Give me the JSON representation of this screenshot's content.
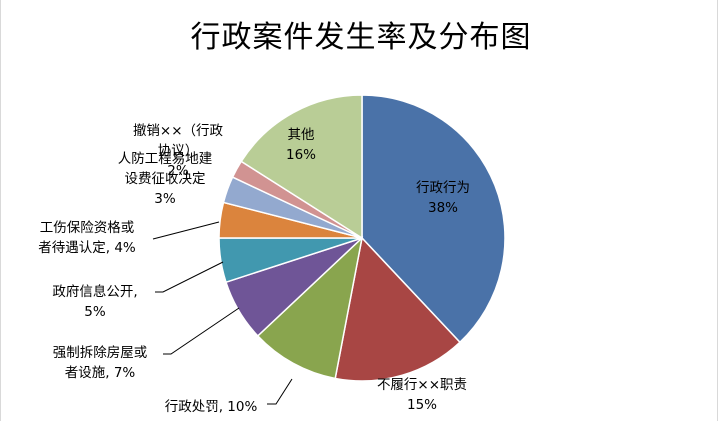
{
  "chart_data": {
    "type": "pie",
    "title": "行政案件发生率及分布图",
    "slices": [
      {
        "label_lines": [
          "行政行为",
          "38%"
        ],
        "value": 38,
        "color": "#4a72a8"
      },
      {
        "label_lines": [
          "不履行××职责",
          "15%"
        ],
        "value": 15,
        "color": "#a84644"
      },
      {
        "label_lines": [
          "行政处罚, 10%"
        ],
        "value": 10,
        "color": "#89a54e"
      },
      {
        "label_lines": [
          "强制拆除房屋或",
          "者设施, 7%"
        ],
        "value": 7,
        "color": "#6f5597"
      },
      {
        "label_lines": [
          "政府信息公开,",
          "5%"
        ],
        "value": 5,
        "color": "#4198af"
      },
      {
        "label_lines": [
          "工伤保险资格或",
          "者待遇认定, 4%"
        ],
        "value": 4,
        "color": "#db843d"
      },
      {
        "label_lines": [
          "人防工程易地建",
          "设费征收决定",
          "3%"
        ],
        "value": 3,
        "color": "#93a9cf"
      },
      {
        "label_lines": [
          "撤销××（行政",
          "协议）",
          "2%"
        ],
        "value": 2,
        "color": "#d19392"
      },
      {
        "label_lines": [
          "其他",
          "16%"
        ],
        "value": 16,
        "color": "#b9cd96"
      }
    ]
  }
}
